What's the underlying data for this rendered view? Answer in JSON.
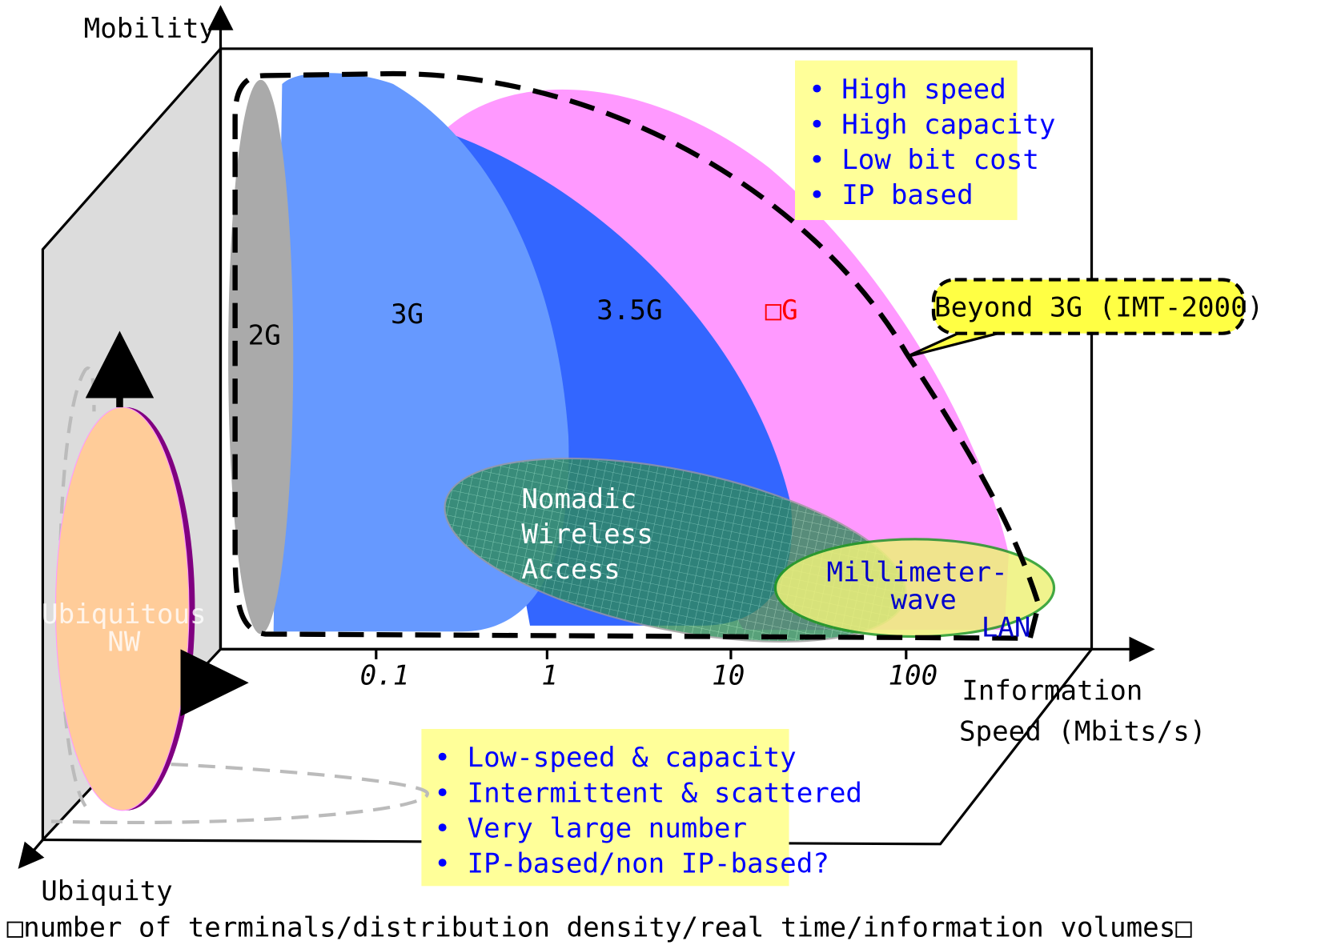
{
  "axes": {
    "mobility": "Mobility",
    "ubiquity": "Ubiquity",
    "speed": [
      "Information",
      "Speed (Mbits/s)"
    ],
    "ubiquity_note": "□number of terminals/distribution density/real time/information volumes□"
  },
  "speed_ticks": [
    "0.1",
    "1",
    "10",
    "100"
  ],
  "regions": {
    "g2": "2G",
    "g3": "3G",
    "g35": "3.5G",
    "g4": "□G",
    "nomadic": [
      "Nomadic",
      "Wireless",
      "Access"
    ],
    "millimeter": [
      "Millimeter-",
      "wave"
    ],
    "lan": "LAN",
    "ubiquitous": [
      "Ubiquitous",
      "NW"
    ]
  },
  "callout": "Beyond 3G (IMT-2000)",
  "features_high": [
    "• High speed",
    "• High capacity",
    "• Low bit cost",
    "• IP based"
  ],
  "features_low": [
    "• Low-speed & capacity",
    "• Intermittent & scattered",
    "• Very large number",
    "• IP-based/non IP-based?"
  ]
}
